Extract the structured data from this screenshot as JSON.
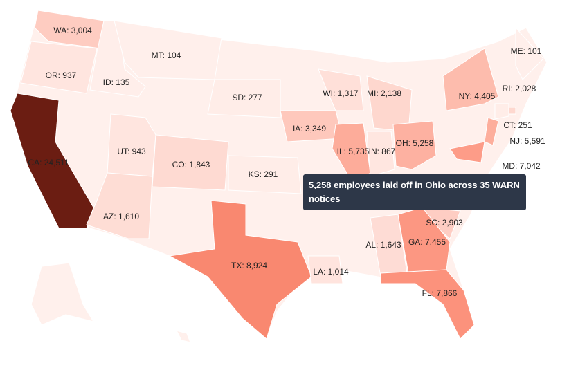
{
  "map": {
    "states": [
      {
        "label": "WA: 3,004",
        "value": 3004
      },
      {
        "label": "OR: 937",
        "value": 937
      },
      {
        "label": "CA: 24,511",
        "value": 24511
      },
      {
        "label": "ID: 135",
        "value": 135
      },
      {
        "label": "MT: 104",
        "value": 104
      },
      {
        "label": "UT: 943",
        "value": 943
      },
      {
        "label": "AZ: 1,610",
        "value": 1610
      },
      {
        "label": "CO: 1,843",
        "value": 1843
      },
      {
        "label": "SD: 277",
        "value": 277
      },
      {
        "label": "KS: 291",
        "value": 291
      },
      {
        "label": "TX: 8,924",
        "value": 8924
      },
      {
        "label": "IA: 3,349",
        "value": 3349
      },
      {
        "label": "WI: 1,317",
        "value": 1317
      },
      {
        "label": "MI: 2,138",
        "value": 2138
      },
      {
        "label": "IL: 5,735",
        "value": 5735
      },
      {
        "label": "IN: 867",
        "value": 867
      },
      {
        "label": "OH: 5,258",
        "value": 5258
      },
      {
        "label": "NY: 4,405",
        "value": 4405
      },
      {
        "label": "ME: 101",
        "value": 101
      },
      {
        "label": "RI: 2,028",
        "value": 2028
      },
      {
        "label": "CT: 251",
        "value": 251
      },
      {
        "label": "NJ: 5,591",
        "value": 5591
      },
      {
        "label": "MD: 7,042",
        "value": 7042
      },
      {
        "label": "SC: 2,903",
        "value": 2903
      },
      {
        "label": "GA: 7,455",
        "value": 7455
      },
      {
        "label": "AL: 1,643",
        "value": 1643
      },
      {
        "label": "LA: 1,014",
        "value": 1014
      },
      {
        "label": "FL: 7,866",
        "value": 7866
      }
    ],
    "tooltip": "5,258 employees laid off in Ohio across 35 WARN notices"
  }
}
